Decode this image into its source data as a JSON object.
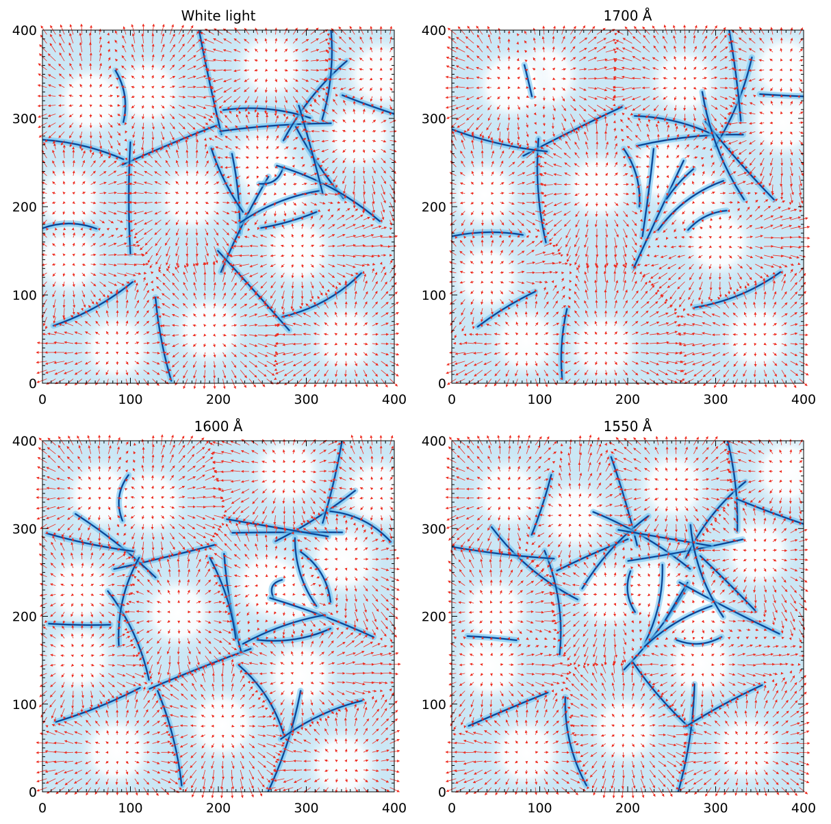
{
  "figure": {
    "panel_count": 4
  },
  "chart_data": [
    {
      "type": "quiver",
      "title": "White light",
      "xlabel": "",
      "ylabel": "",
      "xlim": [
        0,
        400
      ],
      "ylim": [
        0,
        400
      ],
      "xticks": [
        0,
        100,
        200,
        300,
        400
      ],
      "yticks": [
        0,
        100,
        200,
        300,
        400
      ],
      "grid": false,
      "background_colormap": [
        "#ffffff",
        "#cbe7f5",
        "#69c0ef",
        "#1a7fd6",
        "#0a2f78"
      ],
      "vector_color": "#ee2a1e",
      "cells": [
        {
          "x": 30,
          "y": 140
        },
        {
          "x": 120,
          "y": 330
        },
        {
          "x": 170,
          "y": 210
        },
        {
          "x": 190,
          "y": 60
        },
        {
          "x": 260,
          "y": 360
        },
        {
          "x": 270,
          "y": 220
        },
        {
          "x": 290,
          "y": 150
        },
        {
          "x": 360,
          "y": 280
        },
        {
          "x": 345,
          "y": 50
        },
        {
          "x": 55,
          "y": 320
        },
        {
          "x": 385,
          "y": 350
        },
        {
          "x": 85,
          "y": 40
        },
        {
          "x": 250,
          "y": 250
        },
        {
          "x": 30,
          "y": 210
        }
      ]
    },
    {
      "type": "quiver",
      "title": "1700 Å",
      "xlabel": "",
      "ylabel": "",
      "xlim": [
        0,
        400
      ],
      "ylim": [
        0,
        400
      ],
      "xticks": [
        0,
        100,
        200,
        300,
        400
      ],
      "yticks": [
        0,
        100,
        200,
        300,
        400
      ],
      "grid": false,
      "background_colormap": [
        "#ffffff",
        "#cbe7f5",
        "#69c0ef",
        "#1a7fd6",
        "#0a2f78"
      ],
      "vector_color": "#ee2a1e",
      "cells": [
        {
          "x": 30,
          "y": 140
        },
        {
          "x": 120,
          "y": 330
        },
        {
          "x": 170,
          "y": 210
        },
        {
          "x": 190,
          "y": 60
        },
        {
          "x": 260,
          "y": 360
        },
        {
          "x": 270,
          "y": 220
        },
        {
          "x": 290,
          "y": 150
        },
        {
          "x": 360,
          "y": 280
        },
        {
          "x": 345,
          "y": 50
        },
        {
          "x": 55,
          "y": 320
        },
        {
          "x": 385,
          "y": 350
        },
        {
          "x": 85,
          "y": 40
        },
        {
          "x": 250,
          "y": 250
        },
        {
          "x": 30,
          "y": 210
        }
      ]
    },
    {
      "type": "quiver",
      "title": "1600 Å",
      "xlabel": "",
      "ylabel": "",
      "xlim": [
        0,
        400
      ],
      "ylim": [
        0,
        400
      ],
      "xticks": [
        0,
        100,
        200,
        300,
        400
      ],
      "yticks": [
        0,
        100,
        200,
        300,
        400
      ],
      "grid": false,
      "background_colormap": [
        "#ffffff",
        "#cbe7f5",
        "#69c0ef",
        "#1a7fd6",
        "#0a2f78"
      ],
      "vector_color": "#ee2a1e",
      "cells": [
        {
          "x": 30,
          "y": 140
        },
        {
          "x": 120,
          "y": 330
        },
        {
          "x": 170,
          "y": 210
        },
        {
          "x": 190,
          "y": 60
        },
        {
          "x": 260,
          "y": 360
        },
        {
          "x": 270,
          "y": 220
        },
        {
          "x": 290,
          "y": 150
        },
        {
          "x": 360,
          "y": 280
        },
        {
          "x": 345,
          "y": 50
        },
        {
          "x": 55,
          "y": 320
        },
        {
          "x": 385,
          "y": 350
        },
        {
          "x": 85,
          "y": 40
        },
        {
          "x": 250,
          "y": 250
        },
        {
          "x": 30,
          "y": 210
        }
      ]
    },
    {
      "type": "quiver",
      "title": "1550 Å",
      "xlabel": "",
      "ylabel": "",
      "xlim": [
        0,
        400
      ],
      "ylim": [
        0,
        400
      ],
      "xticks": [
        0,
        100,
        200,
        300,
        400
      ],
      "yticks": [
        0,
        100,
        200,
        300,
        400
      ],
      "grid": false,
      "background_colormap": [
        "#ffffff",
        "#cbe7f5",
        "#69c0ef",
        "#1a7fd6",
        "#0a2f78"
      ],
      "vector_color": "#ee2a1e",
      "cells": [
        {
          "x": 30,
          "y": 140
        },
        {
          "x": 120,
          "y": 330
        },
        {
          "x": 170,
          "y": 210
        },
        {
          "x": 190,
          "y": 60
        },
        {
          "x": 260,
          "y": 360
        },
        {
          "x": 270,
          "y": 220
        },
        {
          "x": 290,
          "y": 150
        },
        {
          "x": 360,
          "y": 280
        },
        {
          "x": 345,
          "y": 50
        },
        {
          "x": 55,
          "y": 320
        },
        {
          "x": 385,
          "y": 350
        },
        {
          "x": 85,
          "y": 40
        },
        {
          "x": 250,
          "y": 250
        },
        {
          "x": 30,
          "y": 210
        }
      ]
    }
  ]
}
